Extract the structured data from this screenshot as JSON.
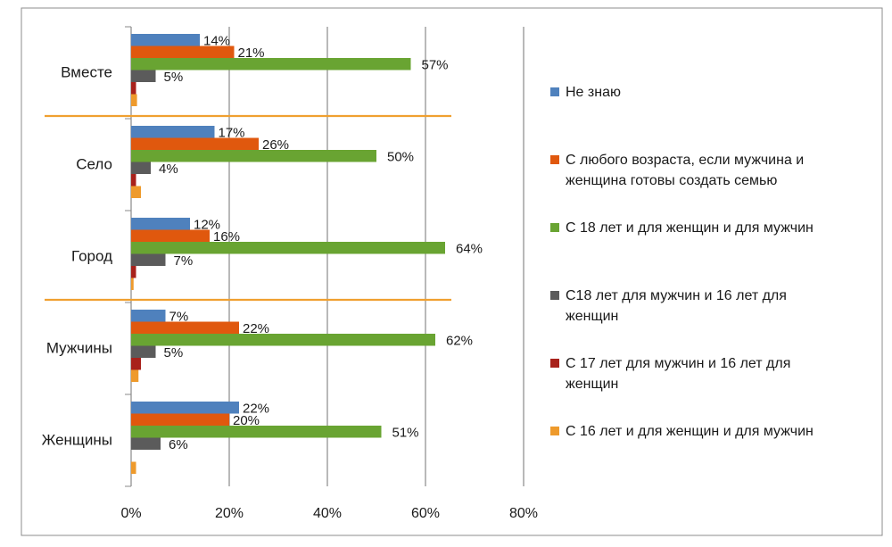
{
  "chart_data": {
    "type": "bar",
    "orientation": "horizontal",
    "categories": [
      "Вместе",
      "Село",
      "Город",
      "Мужчины",
      "Женщины"
    ],
    "series": [
      {
        "name": "Не знаю",
        "color": "#4f81bd",
        "values": [
          14,
          17,
          12,
          7,
          22
        ],
        "labels": [
          "14%",
          "17%",
          "12%",
          "7%",
          "22%"
        ]
      },
      {
        "name": "С любого возраста, если мужчина и женщина готовы создать семью",
        "legend_lines": [
          "С любого возраста, если мужчина и",
          "женщина готовы создать семью"
        ],
        "color": "#e0580e",
        "values": [
          21,
          26,
          16,
          22,
          20
        ],
        "labels": [
          "21%",
          "26%",
          "16%",
          "22%",
          "20%"
        ]
      },
      {
        "name": "С 18 лет и для женщин и для мужчин",
        "legend_lines": [
          "С 18 лет и для женщин и для мужчин"
        ],
        "color": "#69a432",
        "values": [
          57,
          50,
          64,
          62,
          51
        ],
        "labels": [
          "57%",
          "50%",
          "64%",
          "62%",
          "51%"
        ]
      },
      {
        "name": "С18 лет  для мужчин и 16 лет для женщин",
        "legend_lines": [
          "С18 лет  для мужчин и 16 лет для",
          "женщин"
        ],
        "color": "#5b5b5b",
        "values": [
          5,
          4,
          7,
          5,
          6
        ],
        "labels": [
          "5%",
          "4%",
          "7%",
          "5%",
          "6%"
        ]
      },
      {
        "name": "С 17 лет для мужчин и 16 лет для женщин",
        "legend_lines": [
          "С 17 лет для мужчин и 16 лет для",
          "женщин"
        ],
        "color": "#a8211b",
        "values": [
          1,
          1,
          1,
          2,
          0
        ],
        "labels": [
          "",
          "",
          "",
          "",
          ""
        ]
      },
      {
        "name": "С 16 лет и для женщин и для мужчин",
        "legend_lines": [
          "С 16 лет и для женщин и для мужчин"
        ],
        "color": "#ee9a2c",
        "values": [
          1.2,
          2,
          0.5,
          1.5,
          1
        ],
        "labels": [
          "",
          "",
          "",
          "",
          ""
        ]
      }
    ],
    "x_ticks": [
      "0%",
      "20%",
      "40%",
      "60%",
      "80%"
    ],
    "xlim": [
      0,
      80
    ],
    "grid": true,
    "legend_position": "right",
    "separators_after": [
      "Вместе",
      "Город"
    ]
  }
}
